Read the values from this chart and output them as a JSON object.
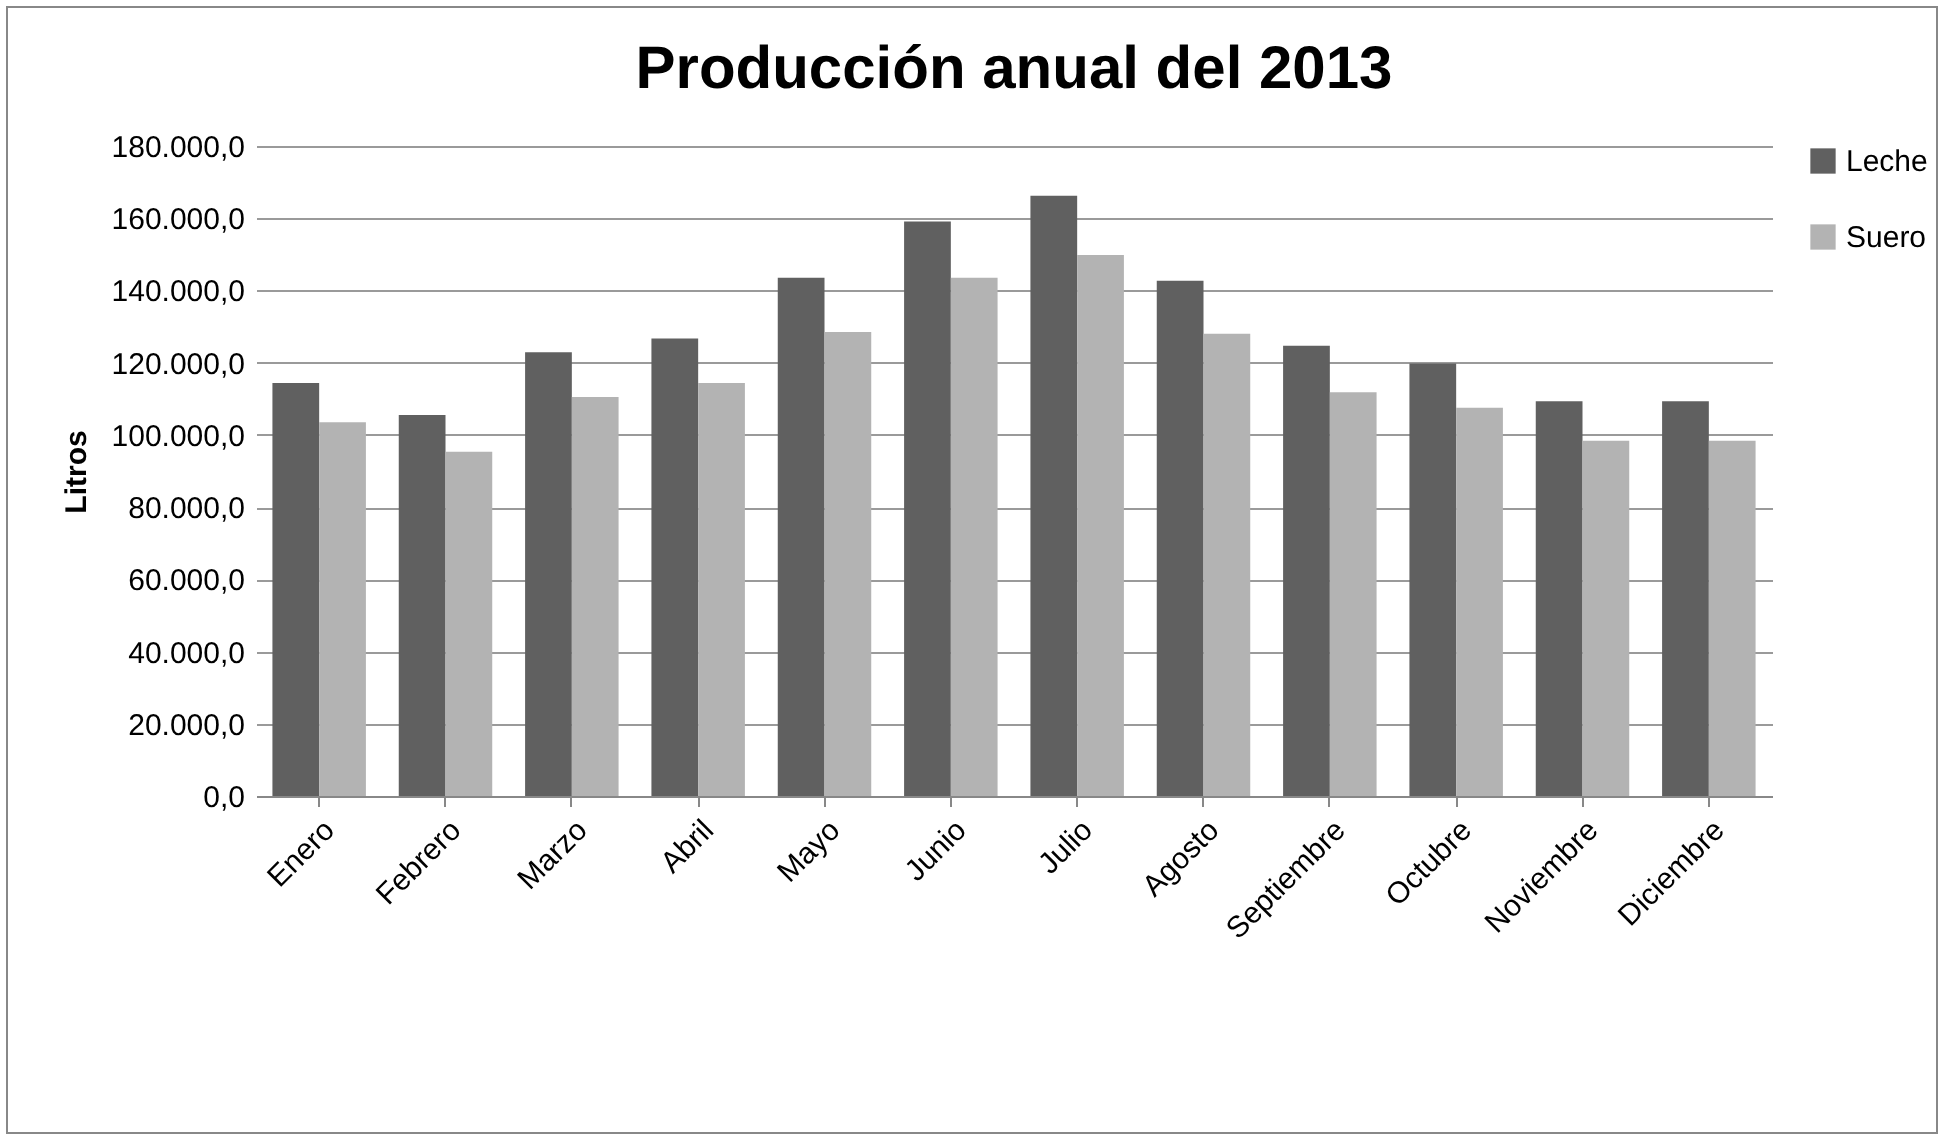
{
  "chart_data": {
    "type": "bar",
    "title": "Producción anual del 2013",
    "ylabel": "Litros",
    "categories": [
      "Enero",
      "Febrero",
      "Marzo",
      "Abril",
      "Mayo",
      "Junio",
      "Julio",
      "Agosto",
      "Septiembre",
      "Octubre",
      "Noviembre",
      "Diciembre"
    ],
    "series": [
      {
        "name": "Leche",
        "color": "#606060",
        "values": [
          114400,
          105500,
          122900,
          126700,
          143500,
          159100,
          166200,
          142700,
          124700,
          119800,
          109300,
          109300
        ]
      },
      {
        "name": "Suero",
        "color": "#b3b3b3",
        "values": [
          103500,
          95300,
          110500,
          114400,
          128500,
          143500,
          149800,
          128000,
          111800,
          107500,
          98400,
          98400
        ]
      }
    ],
    "ylim": [
      0,
      180000
    ],
    "yticks": [
      {
        "value": 0,
        "label": "0,0"
      },
      {
        "value": 20000,
        "label": "20.000,0"
      },
      {
        "value": 40000,
        "label": "40.000,0"
      },
      {
        "value": 60000,
        "label": "60.000,0"
      },
      {
        "value": 80000,
        "label": "80.000,0"
      },
      {
        "value": 100000,
        "label": "100.000,0"
      },
      {
        "value": 120000,
        "label": "120.000,0"
      },
      {
        "value": 140000,
        "label": "140.000,0"
      },
      {
        "value": 160000,
        "label": "160.000,0"
      },
      {
        "value": 180000,
        "label": "180.000,0"
      }
    ],
    "grid": "y",
    "legend": "right"
  }
}
